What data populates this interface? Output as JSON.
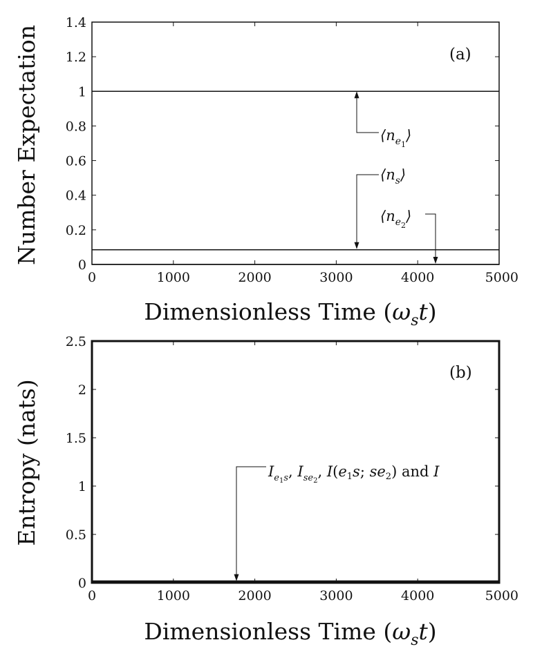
{
  "chart_data": [
    {
      "type": "line",
      "panel_label": "(a)",
      "xlabel": "Dimensionless Time (ωₛ t)",
      "ylabel": "Number Expectation",
      "xlim": [
        0,
        5000
      ],
      "ylim": [
        0,
        1.4
      ],
      "xticks": [
        "0",
        "1000",
        "2000",
        "3000",
        "4000",
        "5000"
      ],
      "yticks": [
        "0",
        "0.2",
        "0.4",
        "0.6",
        "0.8",
        "1",
        "1.2",
        "1.4"
      ],
      "grid": false,
      "series": [
        {
          "name": "⟨n_e1⟩",
          "x": [
            0,
            5000
          ],
          "values": [
            1.0,
            1.0
          ]
        },
        {
          "name": "⟨n_s⟩",
          "x": [
            0,
            5000
          ],
          "values": [
            0.085,
            0.085
          ]
        },
        {
          "name": "⟨n_e2⟩",
          "x": [
            0,
            5000
          ],
          "values": [
            0.0,
            0.0
          ]
        }
      ],
      "annotations": [
        {
          "text": "⟨n_e1⟩",
          "points_to_x": 3250,
          "points_to_y": 1.0
        },
        {
          "text": "⟨n_s⟩",
          "points_to_x": 3250,
          "points_to_y": 0.085
        },
        {
          "text": "⟨n_e2⟩",
          "points_to_x": 4230,
          "points_to_y": 0.0
        }
      ]
    },
    {
      "type": "line",
      "panel_label": "(b)",
      "xlabel": "Dimensionless Time (ωₛ t)",
      "ylabel": "Entropy (nats)",
      "xlim": [
        0,
        5000
      ],
      "ylim": [
        0,
        2.5
      ],
      "xticks": [
        "0",
        "1000",
        "2000",
        "3000",
        "4000",
        "5000"
      ],
      "yticks": [
        "0",
        "0.5",
        "1",
        "1.5",
        "2",
        "2.5"
      ],
      "grid": false,
      "series": [
        {
          "name": "I_e1s, I_se2, I(e1s;se2) and I",
          "x": [
            0,
            5000
          ],
          "values": [
            0.01,
            0.01
          ]
        }
      ],
      "annotations": [
        {
          "text": "I_e1s, I_se2, I(e1s;se2) and I",
          "points_to_x": 1780,
          "points_to_y": 0.01
        }
      ]
    }
  ]
}
